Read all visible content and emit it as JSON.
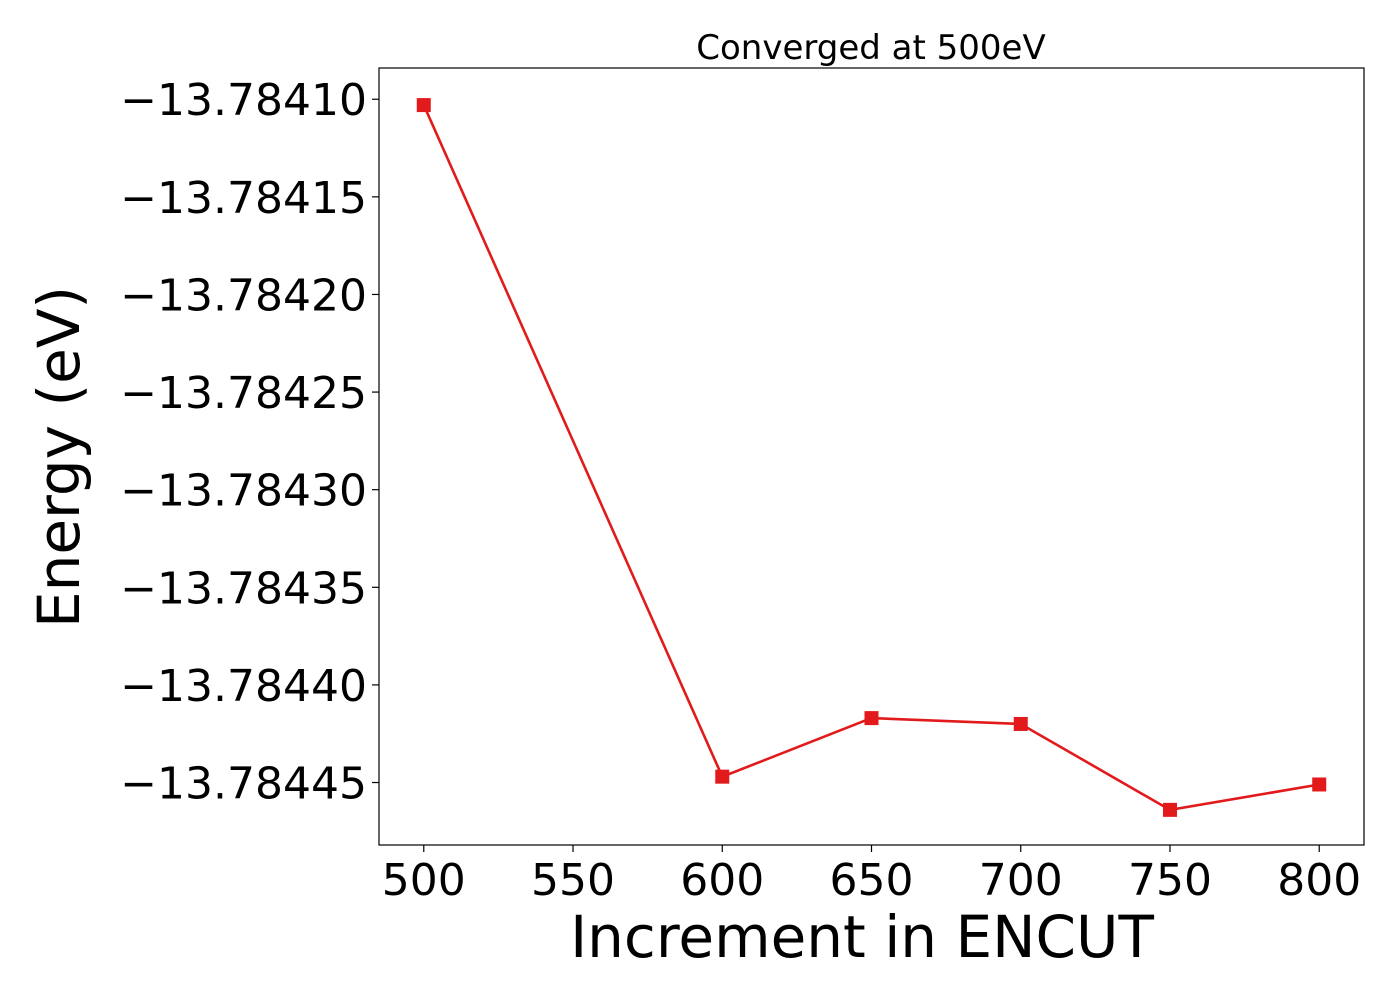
{
  "chart_data": {
    "type": "line",
    "title": "Converged at 500eV",
    "xlabel": "Increment in ENCUT",
    "ylabel": "Energy (eV)",
    "x": [
      500,
      600,
      650,
      700,
      750,
      800
    ],
    "series": [
      {
        "values": [
          -13.784103,
          -13.784447,
          -13.784417,
          -13.78442,
          -13.784464,
          -13.784451
        ],
        "color": "#e31a1c",
        "marker": "square"
      }
    ],
    "xticks": [
      500,
      550,
      600,
      650,
      700,
      750,
      800
    ],
    "xtick_labels": [
      "500",
      "550",
      "600",
      "650",
      "700",
      "750",
      "800"
    ],
    "yticks": [
      -13.7841,
      -13.78415,
      -13.7842,
      -13.78425,
      -13.7843,
      -13.78435,
      -13.7844,
      -13.78445
    ],
    "ytick_labels": [
      "−13.78410",
      "−13.78415",
      "−13.78420",
      "−13.78425",
      "−13.78430",
      "−13.78435",
      "−13.78440",
      "−13.78445"
    ],
    "xlim": [
      485,
      815
    ],
    "ylim": [
      -13.784482,
      -13.784084
    ],
    "grid": false,
    "legend": false
  }
}
